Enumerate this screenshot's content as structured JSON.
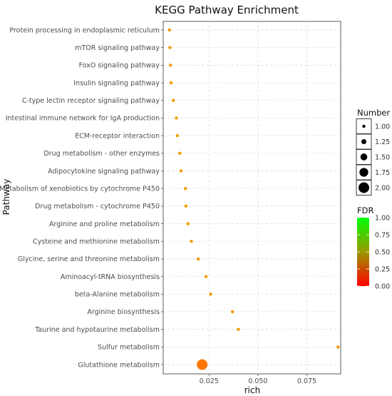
{
  "chart_data": {
    "type": "scatter",
    "title": "KEGG Pathway Enrichment",
    "xlabel": "rich",
    "ylabel": "Pathway",
    "xlim": [
      0.0016,
      0.0923
    ],
    "x_ticks": [
      "0.025",
      "0.050",
      "0.075"
    ],
    "x_tick_values": [
      0.025,
      0.05,
      0.075
    ],
    "grid": true,
    "categories": [
      "Protein processing in endoplasmic reticulum",
      "mTOR signaling pathway",
      "FoxO signaling pathway",
      "Insulin signaling pathway",
      "C-type lectin receptor signaling pathway",
      "Intestinal immune network for IgA production",
      "ECM-receptor interaction",
      "Drug metabolism - other enzymes",
      "Adipocytokine signaling pathway",
      "Metabolism of xenobiotics by cytochrome P450",
      "Drug metabolism - cytochrome P450",
      "Arginine and proline metabolism",
      "Cysteine and methionine metabolism",
      "Glycine, serine and threonine metabolism",
      "Aminoacyl-tRNA biosynthesis",
      "beta-Alanine metabolism",
      "Arginine biosynthesis",
      "Taurine and hypotaurine metabolism",
      "Sulfur metabolism",
      "Glutathione metabolism"
    ],
    "points": [
      {
        "pathway": "Protein processing in endoplasmic reticulum",
        "rich": 0.0048,
        "number": 1,
        "fdr": 0.27
      },
      {
        "pathway": "mTOR signaling pathway",
        "rich": 0.005,
        "number": 1,
        "fdr": 0.27
      },
      {
        "pathway": "FoxO signaling pathway",
        "rich": 0.0053,
        "number": 1,
        "fdr": 0.27
      },
      {
        "pathway": "Insulin signaling pathway",
        "rich": 0.0056,
        "number": 1,
        "fdr": 0.27
      },
      {
        "pathway": "C-type lectin receptor signaling pathway",
        "rich": 0.0068,
        "number": 1,
        "fdr": 0.27
      },
      {
        "pathway": "Intestinal immune network for IgA production",
        "rich": 0.0083,
        "number": 1,
        "fdr": 0.27
      },
      {
        "pathway": "ECM-receptor interaction",
        "rich": 0.0088,
        "number": 1,
        "fdr": 0.27
      },
      {
        "pathway": "Drug metabolism - other enzymes",
        "rich": 0.0101,
        "number": 1,
        "fdr": 0.27
      },
      {
        "pathway": "Adipocytokine signaling pathway",
        "rich": 0.0107,
        "number": 1,
        "fdr": 0.27
      },
      {
        "pathway": "Metabolism of xenobiotics by cytochrome P450",
        "rich": 0.013,
        "number": 1,
        "fdr": 0.27
      },
      {
        "pathway": "Drug metabolism - cytochrome P450",
        "rich": 0.0132,
        "number": 1,
        "fdr": 0.27
      },
      {
        "pathway": "Arginine and proline metabolism",
        "rich": 0.0143,
        "number": 1,
        "fdr": 0.27
      },
      {
        "pathway": "Cysteine and methionine metabolism",
        "rich": 0.016,
        "number": 1,
        "fdr": 0.27
      },
      {
        "pathway": "Glycine, serine and threonine metabolism",
        "rich": 0.0195,
        "number": 1,
        "fdr": 0.27
      },
      {
        "pathway": "Aminoacyl-tRNA biosynthesis",
        "rich": 0.0235,
        "number": 1,
        "fdr": 0.27
      },
      {
        "pathway": "beta-Alanine metabolism",
        "rich": 0.0258,
        "number": 1,
        "fdr": 0.27
      },
      {
        "pathway": "Arginine biosynthesis",
        "rich": 0.037,
        "number": 1,
        "fdr": 0.27
      },
      {
        "pathway": "Taurine and hypotaurine metabolism",
        "rich": 0.04,
        "number": 1,
        "fdr": 0.27
      },
      {
        "pathway": "Sulfur metabolism",
        "rich": 0.091,
        "number": 1,
        "fdr": 0.27
      },
      {
        "pathway": "Glutathione metabolism",
        "rich": 0.0215,
        "number": 2,
        "fdr": 0.18
      }
    ],
    "size_legend": {
      "title": "Number",
      "values": [
        1.0,
        1.25,
        1.5,
        1.75,
        2.0
      ],
      "labels": [
        "1.00",
        "1.25",
        "1.50",
        "1.75",
        "2.00"
      ]
    },
    "color_legend": {
      "title": "FDR",
      "values": [
        0.0,
        0.25,
        0.5,
        0.75,
        1.0
      ],
      "labels": [
        "0.00",
        "0.25",
        "0.50",
        "0.75",
        "1.00"
      ],
      "low_color": "#ff0000",
      "high_color": "#00ff00"
    },
    "legend_position": "right"
  }
}
